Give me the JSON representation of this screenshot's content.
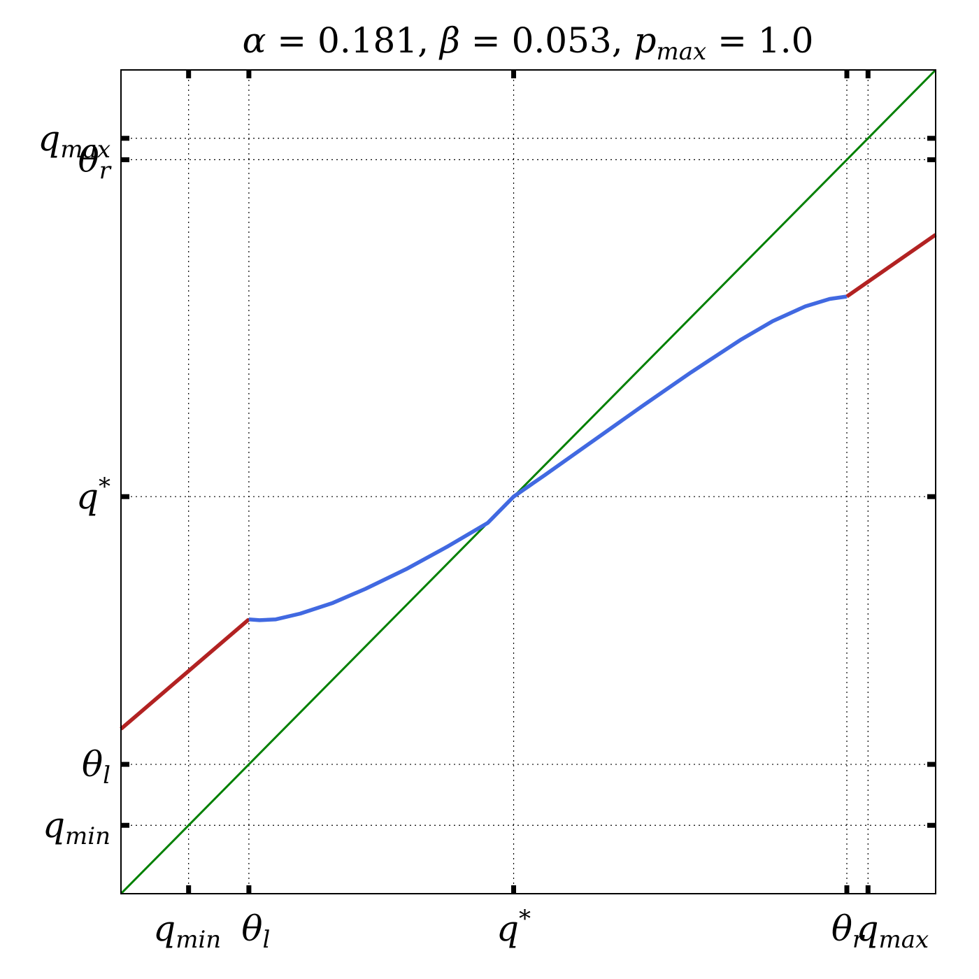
{
  "chart_data": {
    "type": "line",
    "title": {
      "alpha_symbol": "α",
      "alpha_value": "0.181",
      "beta_symbol": "β",
      "beta_value": "0.053",
      "p_symbol": "p",
      "p_subscript": "max",
      "p_value": "1.0"
    },
    "xlim": [
      0,
      1
    ],
    "ylim": [
      0,
      1
    ],
    "grid": "dotted at tick positions",
    "ticks": [
      {
        "id": "q_min",
        "value": 0.083,
        "base": "q",
        "sub": "min",
        "sup": ""
      },
      {
        "id": "theta_l",
        "value": 0.157,
        "base": "θ",
        "sub": "l",
        "sup": ""
      },
      {
        "id": "q_star",
        "value": 0.482,
        "base": "q",
        "sub": "",
        "sup": "*"
      },
      {
        "id": "theta_r",
        "value": 0.891,
        "base": "θ",
        "sub": "r",
        "sup": ""
      },
      {
        "id": "q_max",
        "value": 0.917,
        "base": "q",
        "sub": "max",
        "sup": ""
      }
    ],
    "series": [
      {
        "role": "identity",
        "color": "#008000",
        "points": [
          [
            0.0,
            0.0
          ],
          [
            1.0,
            1.0
          ]
        ]
      },
      {
        "role": "left-linear",
        "color": "#b22222",
        "points": [
          [
            0.0,
            0.2
          ],
          [
            0.157,
            0.333
          ]
        ]
      },
      {
        "role": "middle-curve",
        "color": "#4169e1",
        "points": [
          [
            0.157,
            0.333
          ],
          [
            0.17,
            0.332
          ],
          [
            0.19,
            0.333
          ],
          [
            0.22,
            0.34
          ],
          [
            0.26,
            0.353
          ],
          [
            0.3,
            0.37
          ],
          [
            0.35,
            0.394
          ],
          [
            0.4,
            0.421
          ],
          [
            0.45,
            0.45
          ],
          [
            0.482,
            0.482
          ],
          [
            0.52,
            0.508
          ],
          [
            0.58,
            0.55
          ],
          [
            0.64,
            0.592
          ],
          [
            0.7,
            0.633
          ],
          [
            0.76,
            0.672
          ],
          [
            0.8,
            0.695
          ],
          [
            0.84,
            0.713
          ],
          [
            0.87,
            0.722
          ],
          [
            0.891,
            0.725
          ]
        ]
      },
      {
        "role": "right-linear",
        "color": "#b22222",
        "points": [
          [
            0.891,
            0.725
          ],
          [
            1.0,
            0.8
          ]
        ]
      }
    ]
  }
}
